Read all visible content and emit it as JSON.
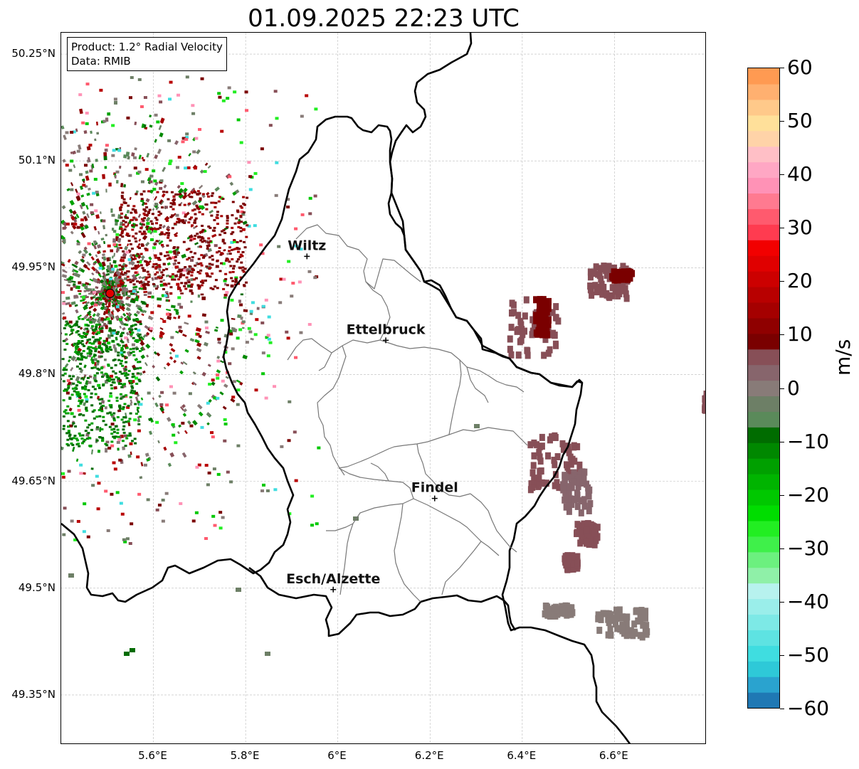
{
  "title": "01.09.2025 22:23 UTC",
  "info_box": {
    "product": "Product: 1.2° Radial Velocity",
    "data_source": "Data: RMIB"
  },
  "map": {
    "lon_range": [
      5.4,
      6.8
    ],
    "lat_range": [
      49.28,
      50.28
    ],
    "latitude_ticks": [
      {
        "value": 50.25,
        "label": "50.25°N"
      },
      {
        "value": 50.1,
        "label": "50.1°N"
      },
      {
        "value": 49.95,
        "label": "49.95°N"
      },
      {
        "value": 49.8,
        "label": "49.8°N"
      },
      {
        "value": 49.65,
        "label": "49.65°N"
      },
      {
        "value": 49.5,
        "label": "49.5°N"
      },
      {
        "value": 49.35,
        "label": "49.35°N"
      }
    ],
    "longitude_ticks": [
      {
        "value": 5.6,
        "label": "5.6°E"
      },
      {
        "value": 5.8,
        "label": "5.8°E"
      },
      {
        "value": 6.0,
        "label": "6°E"
      },
      {
        "value": 6.2,
        "label": "6.2°E"
      },
      {
        "value": 6.4,
        "label": "6.4°E"
      },
      {
        "value": 6.6,
        "label": "6.6°E"
      }
    ],
    "gridlines": true,
    "radar_site": {
      "lon": 5.506,
      "lat": 49.914,
      "color": "#e00000"
    },
    "cities": [
      {
        "name": "Wiltz",
        "lon": 5.933,
        "lat": 49.966
      },
      {
        "name": "Ettelbruck",
        "lon": 6.104,
        "lat": 49.848
      },
      {
        "name": "Findel",
        "lon": 6.21,
        "lat": 49.626
      },
      {
        "name": "Esch/Alzette",
        "lon": 5.99,
        "lat": 49.498
      }
    ]
  },
  "colorbar": {
    "unit": "m/s",
    "min": -60,
    "max": 60,
    "ticks": [
      {
        "value": 60,
        "label": "60"
      },
      {
        "value": 50,
        "label": "50"
      },
      {
        "value": 40,
        "label": "40"
      },
      {
        "value": 30,
        "label": "30"
      },
      {
        "value": 20,
        "label": "20"
      },
      {
        "value": 10,
        "label": "10"
      },
      {
        "value": 0,
        "label": "0"
      },
      {
        "value": -10,
        "label": "−10"
      },
      {
        "value": -20,
        "label": "−20"
      },
      {
        "value": -30,
        "label": "−30"
      },
      {
        "value": -40,
        "label": "−40"
      },
      {
        "value": -50,
        "label": "−50"
      },
      {
        "value": -60,
        "label": "−60"
      }
    ],
    "colors": [
      "#1f78b4",
      "#2aa3cf",
      "#2ec9d8",
      "#3fdde0",
      "#5ee3e2",
      "#7de9e6",
      "#9aeeea",
      "#b7f2ee",
      "#8ff0a8",
      "#6cf07f",
      "#3ff04a",
      "#22ee22",
      "#00dd00",
      "#00c800",
      "#00b400",
      "#00a000",
      "#008800",
      "#006c00",
      "#5a8a5a",
      "#6d7f66",
      "#887b78",
      "#87656c",
      "#874f57",
      "#7a0000",
      "#8f0000",
      "#a50000",
      "#b80000",
      "#cc0000",
      "#e00000",
      "#f20000",
      "#ff3b50",
      "#ff5a6e",
      "#ff7a90",
      "#ff92b6",
      "#ffa7c4",
      "#ffbfc6",
      "#ffd3a8",
      "#ffe09a",
      "#ffc98a",
      "#ffb070",
      "#ff9a52"
    ]
  }
}
